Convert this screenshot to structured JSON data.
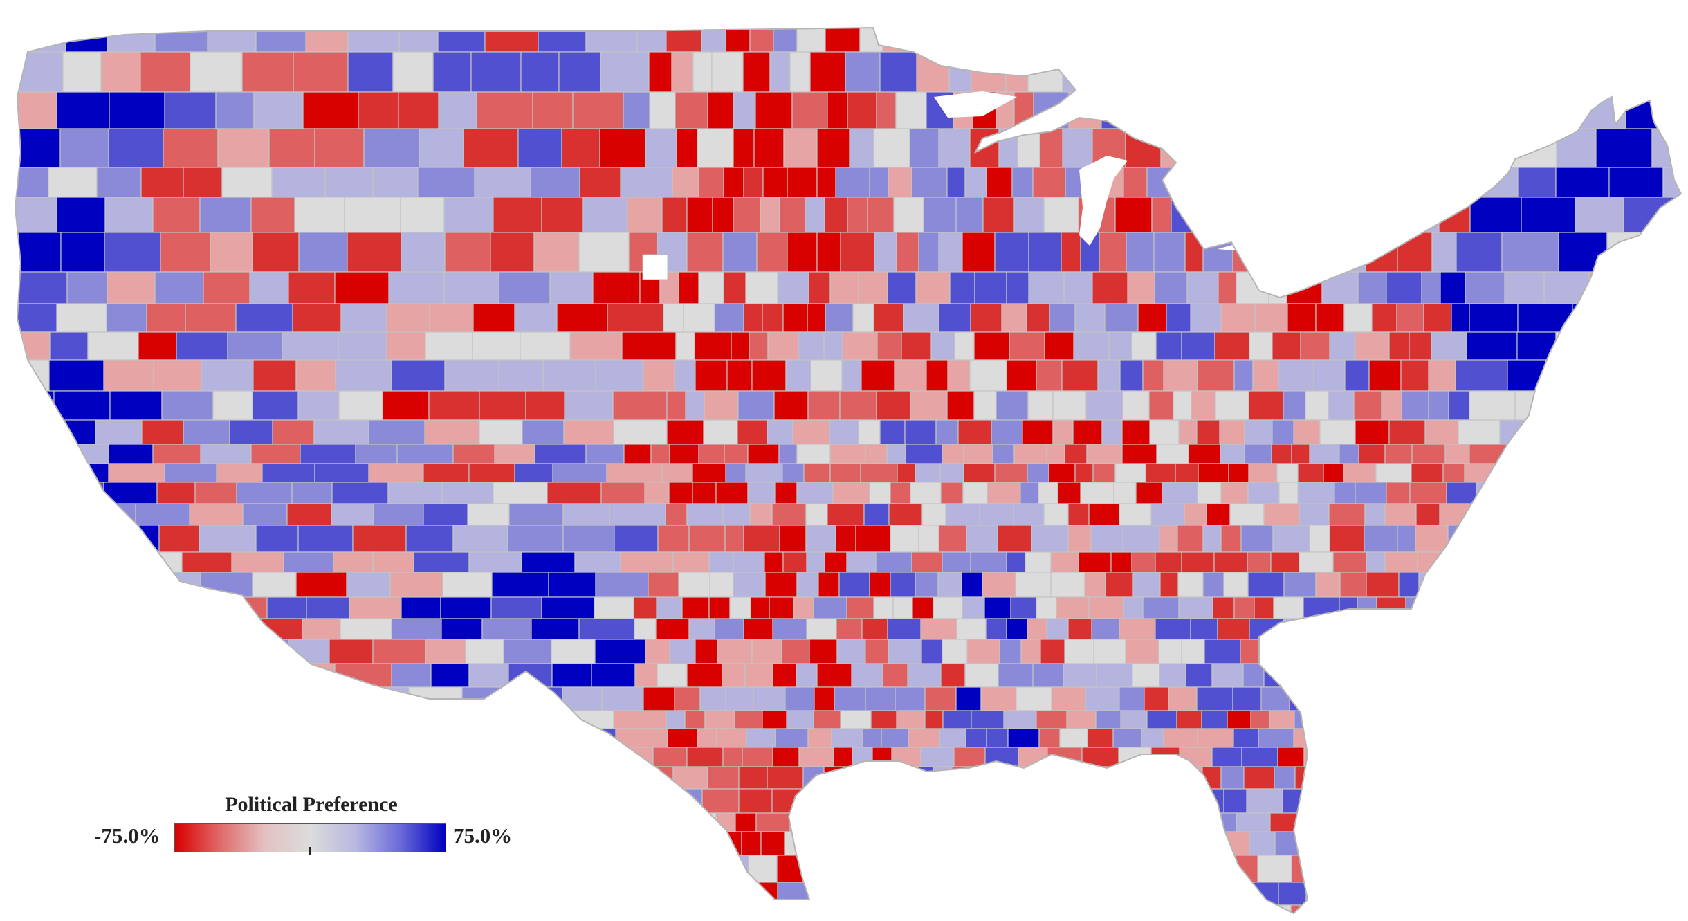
{
  "map": {
    "colors": {
      "strong_red": "#d90000",
      "red": "#d93030",
      "mid_red": "#de6060",
      "light_red": "#e6a4a4",
      "neutral": "#dcdcdc",
      "light_blue": "#b4b4de",
      "mid_blue": "#8a8ad8",
      "blue": "#5050d0",
      "strong_blue": "#0000c0",
      "border": "#c4c4c4"
    }
  },
  "legend": {
    "title": "Political Preference",
    "min_label": "-75.0%",
    "max_label": "75.0%",
    "min_value": -75.0,
    "max_value": 75.0,
    "gradient": [
      "#d90000",
      "#e06a6a",
      "#e3c2c2",
      "#dcdcdc",
      "#b8b8e0",
      "#6a6ad8",
      "#0000c0"
    ]
  }
}
